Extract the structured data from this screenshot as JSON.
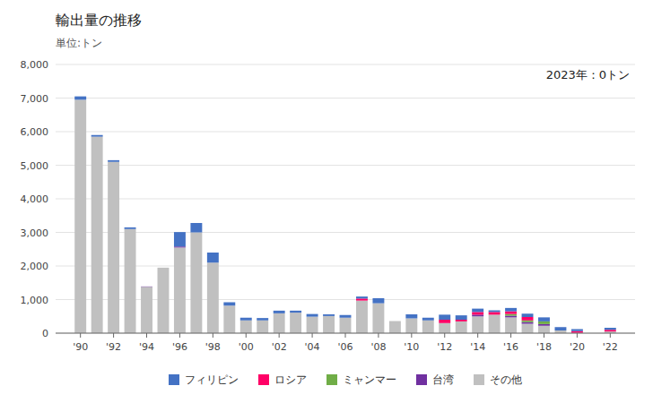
{
  "chart_data": {
    "type": "bar",
    "stacked": true,
    "title": "輸出量の推移",
    "subtitle": "単位:トン",
    "annotation": "2023年：0トン",
    "x": [
      1990,
      1991,
      1992,
      1993,
      1994,
      1995,
      1996,
      1997,
      1998,
      1999,
      2000,
      2001,
      2002,
      2003,
      2004,
      2005,
      2006,
      2007,
      2008,
      2009,
      2010,
      2011,
      2012,
      2013,
      2014,
      2015,
      2016,
      2017,
      2018,
      2019,
      2020,
      2021,
      2022
    ],
    "series": [
      {
        "name": "その他",
        "color": "#C0C0C0",
        "values": [
          6950,
          5850,
          5100,
          3100,
          1380,
          1950,
          2550,
          3000,
          2100,
          820,
          380,
          380,
          590,
          610,
          490,
          510,
          460,
          970,
          890,
          360,
          440,
          380,
          300,
          350,
          500,
          550,
          470,
          280,
          220,
          80,
          10,
          0,
          50
        ]
      },
      {
        "name": "台湾",
        "color": "#7030A0",
        "values": [
          0,
          0,
          0,
          0,
          10,
          0,
          30,
          0,
          0,
          0,
          0,
          0,
          0,
          0,
          0,
          0,
          0,
          0,
          0,
          0,
          0,
          0,
          0,
          0,
          50,
          0,
          50,
          50,
          50,
          0,
          0,
          0,
          0
        ]
      },
      {
        "name": "ミャンマー",
        "color": "#70AD47",
        "values": [
          0,
          0,
          0,
          0,
          0,
          0,
          0,
          0,
          0,
          0,
          0,
          0,
          0,
          0,
          0,
          0,
          0,
          0,
          0,
          0,
          0,
          0,
          0,
          0,
          0,
          0,
          50,
          50,
          80,
          0,
          0,
          0,
          0
        ]
      },
      {
        "name": "ロシア",
        "color": "#FF0066",
        "values": [
          0,
          0,
          0,
          0,
          0,
          0,
          0,
          0,
          0,
          0,
          0,
          0,
          0,
          0,
          0,
          0,
          0,
          60,
          0,
          0,
          0,
          0,
          100,
          50,
          80,
          80,
          80,
          100,
          0,
          0,
          50,
          0,
          50
        ]
      },
      {
        "name": "フィリピン",
        "color": "#4472C4",
        "values": [
          100,
          50,
          50,
          50,
          0,
          0,
          430,
          280,
          300,
          100,
          80,
          70,
          80,
          60,
          80,
          50,
          80,
          60,
          150,
          0,
          120,
          80,
          150,
          130,
          100,
          50,
          100,
          100,
          120,
          100,
          60,
          0,
          60
        ]
      }
    ],
    "xlim": [
      1988.5,
      2023.5
    ],
    "xticks": [
      {
        "value": 1990,
        "label": "'90"
      },
      {
        "value": 1992,
        "label": "'92"
      },
      {
        "value": 1994,
        "label": "'94"
      },
      {
        "value": 1996,
        "label": "'96"
      },
      {
        "value": 1998,
        "label": "'98"
      },
      {
        "value": 2000,
        "label": "'00"
      },
      {
        "value": 2002,
        "label": "'02"
      },
      {
        "value": 2004,
        "label": "'04"
      },
      {
        "value": 2006,
        "label": "'06"
      },
      {
        "value": 2008,
        "label": "'08"
      },
      {
        "value": 2010,
        "label": "'10"
      },
      {
        "value": 2012,
        "label": "'12"
      },
      {
        "value": 2014,
        "label": "'14"
      },
      {
        "value": 2016,
        "label": "'16"
      },
      {
        "value": 2018,
        "label": "'18"
      },
      {
        "value": 2020,
        "label": "'20"
      },
      {
        "value": 2022,
        "label": "'22"
      }
    ],
    "ylim": [
      0,
      8000
    ],
    "yticks": [
      0,
      {
        "value": 1000,
        "label": "1,000"
      },
      {
        "value": 2000,
        "label": "2,000"
      },
      {
        "value": 3000,
        "label": "3,000"
      },
      {
        "value": 4000,
        "label": "4,000"
      },
      {
        "value": 5000,
        "label": "5,000"
      },
      {
        "value": 6000,
        "label": "6,000"
      },
      {
        "value": 7000,
        "label": "7,000"
      },
      {
        "value": 8000,
        "label": "8,000"
      }
    ],
    "grid": true,
    "legend": "bottom"
  }
}
